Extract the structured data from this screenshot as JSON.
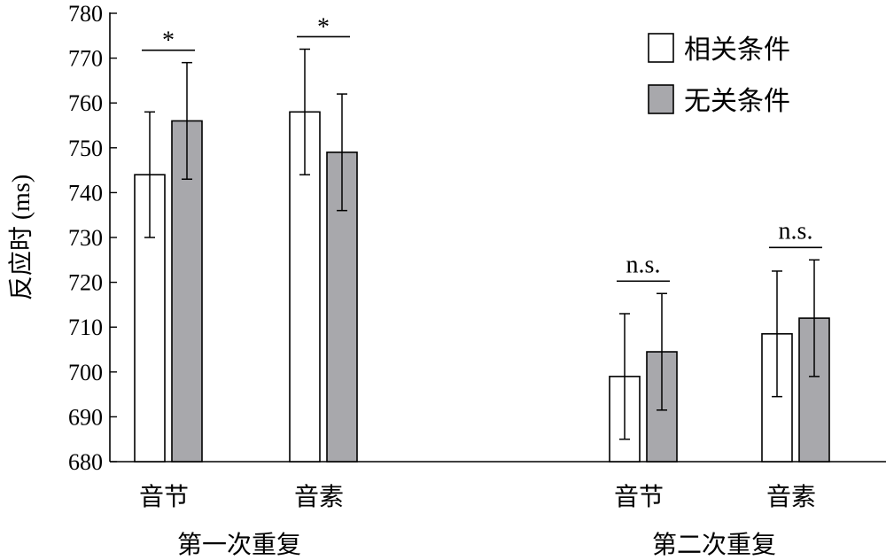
{
  "chart_data": {
    "type": "bar",
    "ylabel": "反应时 (ms)",
    "ylim": [
      680,
      780
    ],
    "yticks": [
      680,
      690,
      700,
      710,
      720,
      730,
      740,
      750,
      760,
      770,
      780
    ],
    "groups": [
      {
        "label": "第一次重复",
        "categories": [
          {
            "label": "音节",
            "values": [
              744,
              756
            ],
            "errors": [
              14,
              13
            ],
            "significance": "*"
          },
          {
            "label": "音素",
            "values": [
              758,
              749
            ],
            "errors": [
              14,
              13
            ],
            "significance": "*"
          }
        ]
      },
      {
        "label": "第二次重复",
        "categories": [
          {
            "label": "音节",
            "values": [
              699,
              704.5
            ],
            "errors": [
              14,
              13
            ],
            "significance": "n.s."
          },
          {
            "label": "音素",
            "values": [
              708.5,
              712
            ],
            "errors": [
              14,
              13
            ],
            "significance": "n.s."
          }
        ]
      }
    ],
    "series": [
      {
        "name": "相关条件",
        "color": "#ffffff"
      },
      {
        "name": "无关条件",
        "color": "#a8a8ac"
      }
    ],
    "legend_position": "top-right",
    "grid": false
  }
}
